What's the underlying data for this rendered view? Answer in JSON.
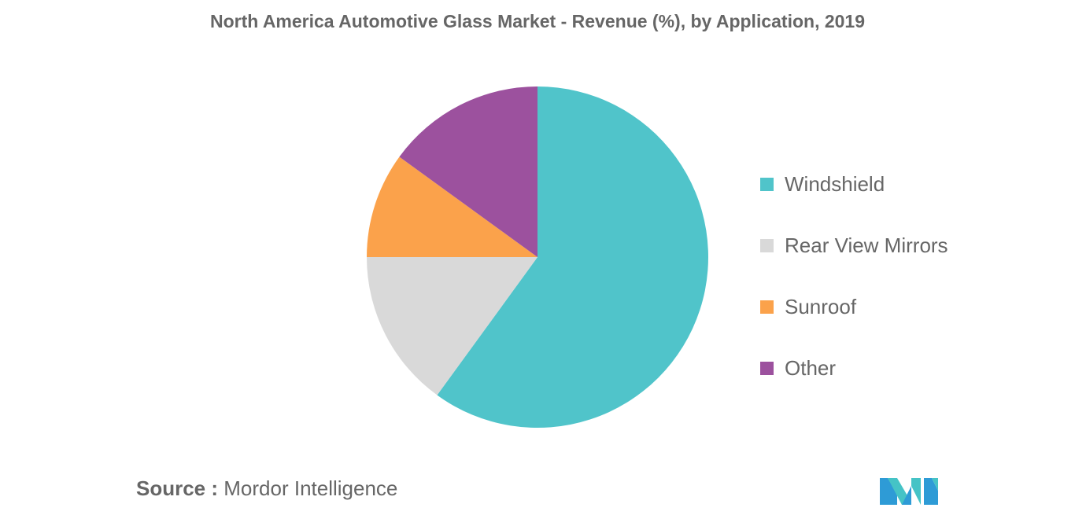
{
  "chart_data": {
    "type": "pie",
    "title": "North America Automotive Glass Market - Revenue (%), by Application, 2019",
    "categories": [
      "Windshield",
      "Rear View Mirrors",
      "Sunroof",
      "Other"
    ],
    "values": [
      60,
      15,
      10,
      15
    ],
    "colors": [
      "#50C4CA",
      "#D9D9D9",
      "#FBA24B",
      "#9C519E"
    ],
    "legend_position": "right",
    "start_angle": "top, clockwise"
  },
  "source": {
    "label": "Source :",
    "text": "Mordor Intelligence"
  },
  "logo": {
    "text": "Mordor Intelligence",
    "colors": [
      "#2E9BD6",
      "#45C3C6"
    ]
  }
}
